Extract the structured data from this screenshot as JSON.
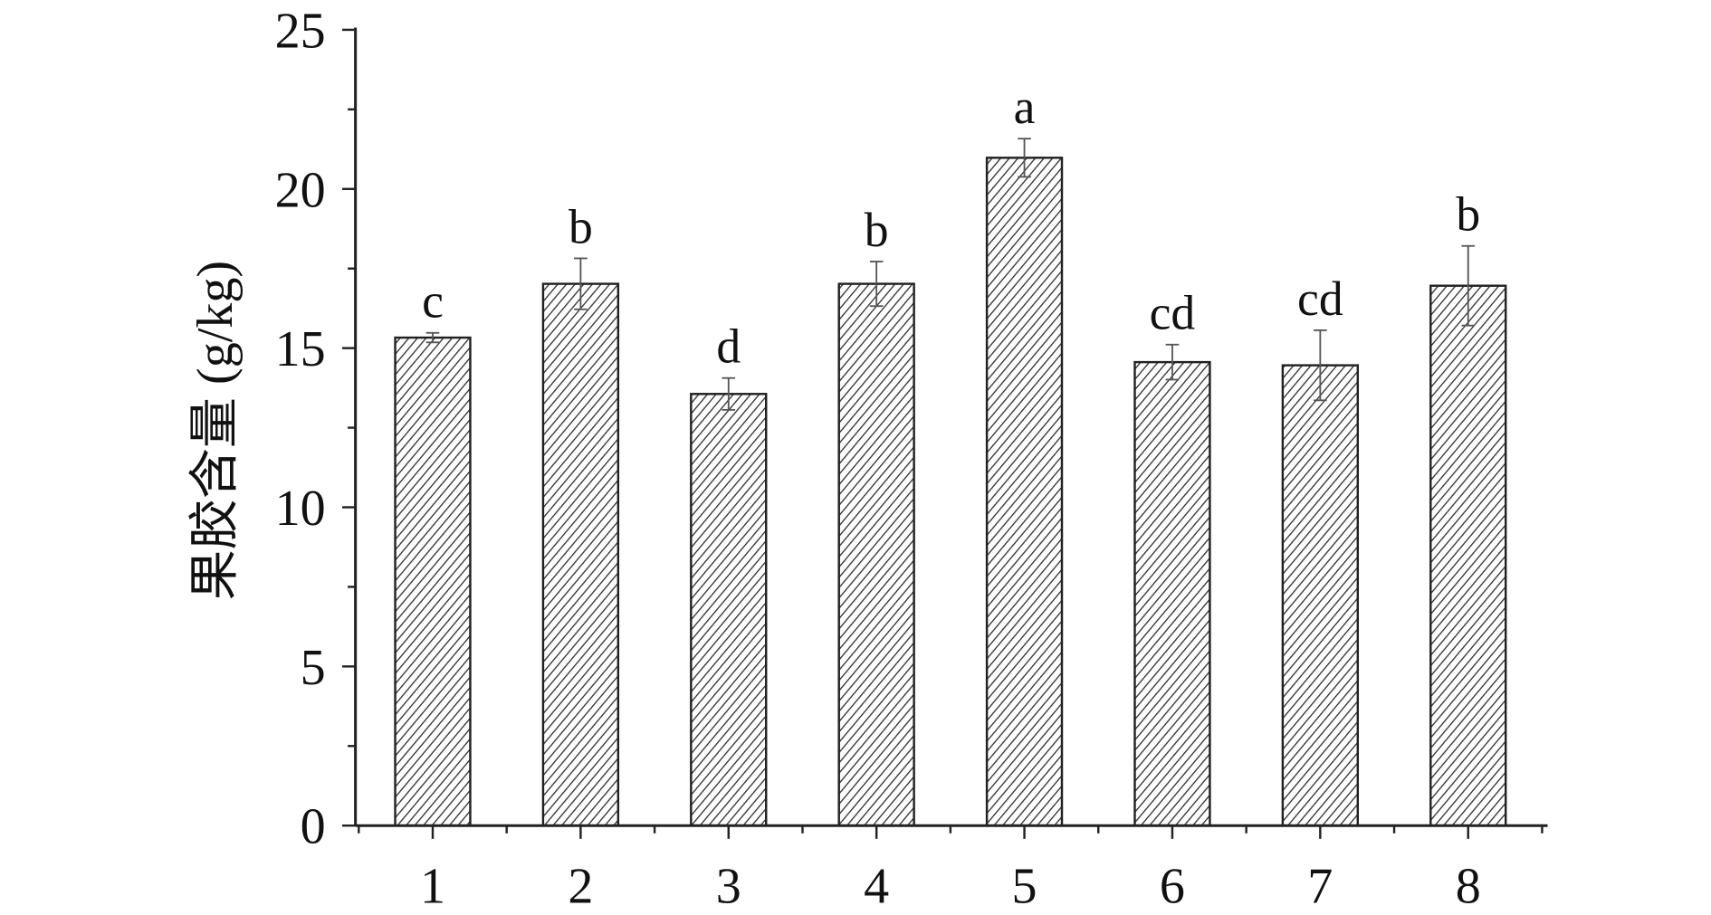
{
  "chart_data": {
    "type": "bar",
    "title": "",
    "xlabel": "",
    "ylabel": "果胶含量 (g/kg)",
    "categories": [
      "1",
      "2",
      "3",
      "4",
      "5",
      "6",
      "7",
      "8"
    ],
    "values": [
      15.33,
      17.02,
      13.56,
      17.02,
      20.98,
      14.56,
      14.46,
      16.96
    ],
    "errors": [
      0.15,
      0.8,
      0.5,
      0.7,
      0.6,
      0.55,
      1.1,
      1.25
    ],
    "significance_labels": [
      "c",
      "b",
      "d",
      "b",
      "a",
      "cd",
      "cd",
      "b"
    ],
    "ylim": [
      0,
      25
    ],
    "yticks": [
      0,
      5,
      10,
      15,
      20,
      25
    ],
    "grid": false,
    "bar_fill": "diagonal hatch",
    "bar_color": "#333333"
  }
}
